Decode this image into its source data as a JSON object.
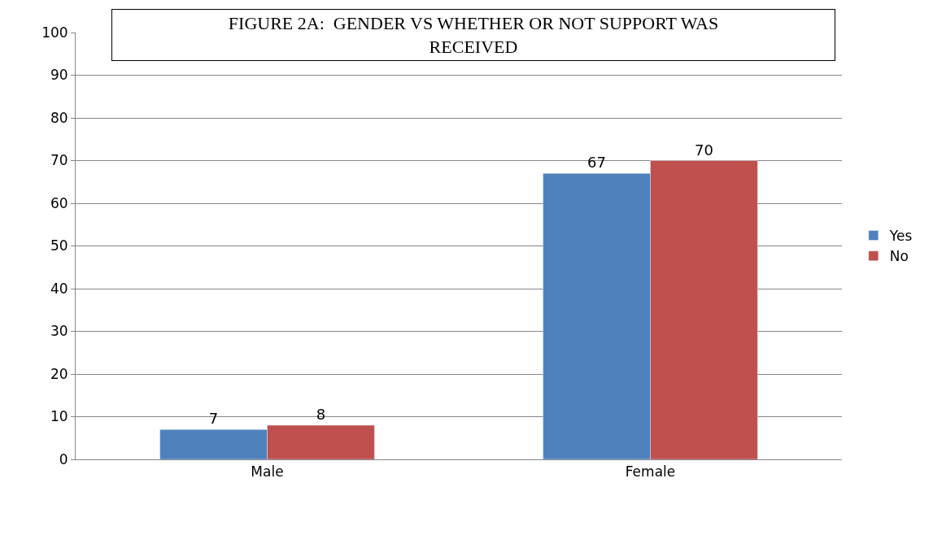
{
  "chart_data": {
    "type": "bar",
    "title": "FIGURE 2A:  GENDER VS WHETHER OR NOT SUPPORT WAS RECEIVED",
    "categories": [
      "Male",
      "Female"
    ],
    "series": [
      {
        "name": "Yes",
        "color": "#4f81bd",
        "values": [
          7,
          67
        ]
      },
      {
        "name": "No",
        "color": "#c0504d",
        "values": [
          8,
          70
        ]
      }
    ],
    "ylim": [
      0,
      100
    ],
    "yticks": [
      0,
      10,
      20,
      30,
      40,
      50,
      60,
      70,
      80,
      90,
      100
    ],
    "grid": "y",
    "legend": "right",
    "data_labels": true
  }
}
